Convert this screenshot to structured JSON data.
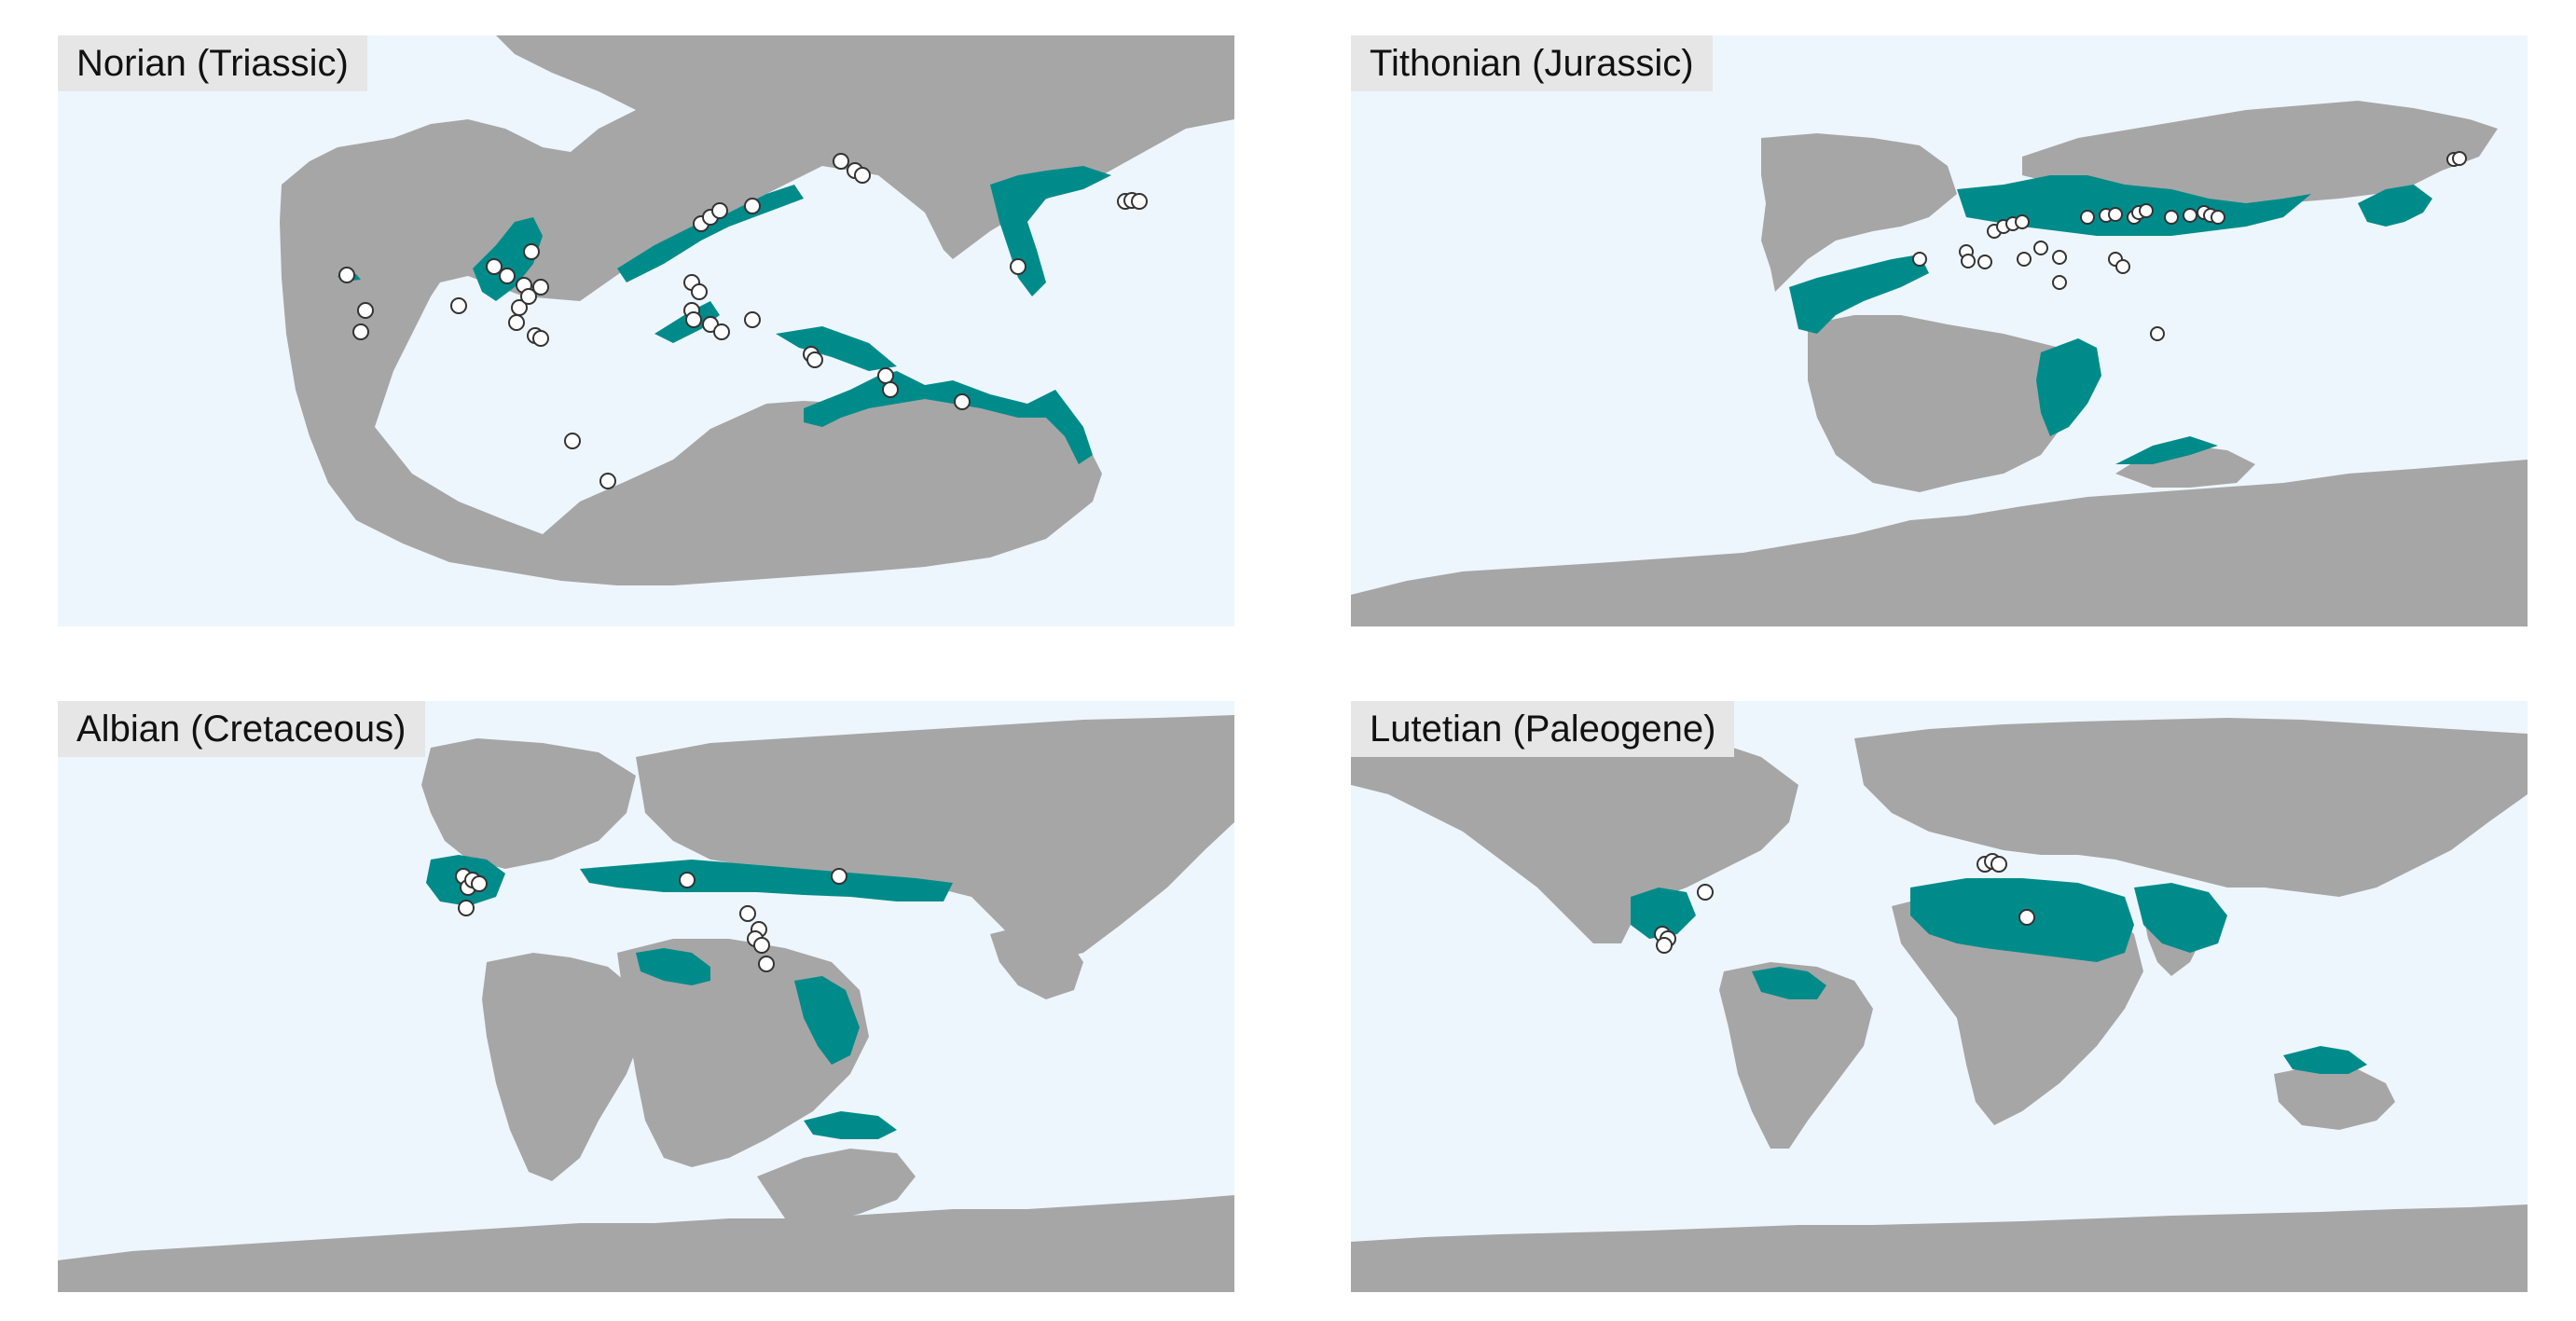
{
  "colors": {
    "ocean": "#eef6fd",
    "land": "#a6a6a6",
    "shelf": "#008b8b",
    "site_fill": "#ffffff",
    "site_stroke": "#333333"
  },
  "icons": {
    "site": "circle-marker"
  },
  "panels": [
    {
      "label": "Norian (Triassic)"
    },
    {
      "label": "Tithonian (Jurassic)"
    },
    {
      "label": "Albian (Cretaceous)"
    },
    {
      "label": "Lutetian (Paleogene)"
    }
  ]
}
